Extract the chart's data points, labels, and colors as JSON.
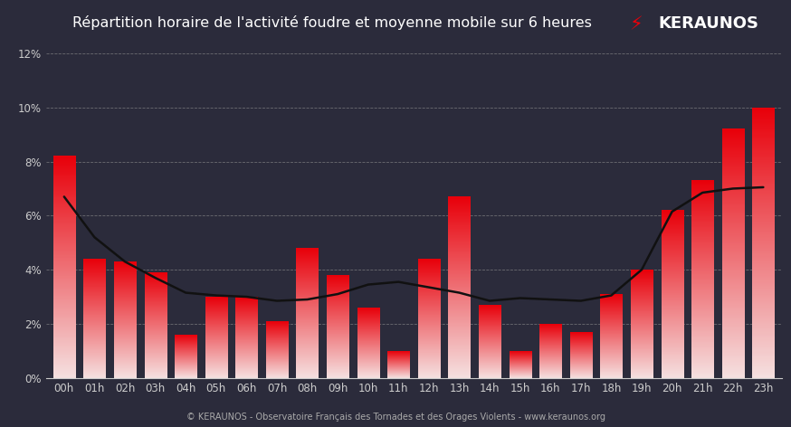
{
  "title": "Répartition horaire de l'activité foudre et moyenne mobile sur 6 heures",
  "categories": [
    "00h",
    "01h",
    "02h",
    "03h",
    "04h",
    "05h",
    "06h",
    "07h",
    "08h",
    "09h",
    "10h",
    "11h",
    "12h",
    "13h",
    "14h",
    "15h",
    "16h",
    "17h",
    "18h",
    "19h",
    "20h",
    "21h",
    "22h",
    "23h"
  ],
  "values": [
    8.2,
    4.4,
    4.3,
    3.9,
    1.6,
    3.0,
    3.0,
    2.1,
    4.8,
    3.8,
    2.6,
    1.0,
    4.4,
    6.7,
    2.7,
    1.0,
    2.0,
    1.7,
    3.1,
    4.0,
    6.2,
    7.3,
    9.2,
    10.0
  ],
  "moving_avg": [
    6.7,
    5.2,
    4.3,
    3.7,
    3.15,
    3.05,
    3.0,
    2.85,
    2.9,
    3.1,
    3.45,
    3.55,
    3.35,
    3.15,
    2.85,
    2.95,
    2.9,
    2.85,
    3.05,
    4.0,
    6.15,
    6.85,
    7.0,
    7.05
  ],
  "ylim": [
    0,
    12
  ],
  "yticks": [
    0,
    2,
    4,
    6,
    8,
    10,
    12
  ],
  "background_color": "#2b2b3b",
  "plot_bg_color": "#2b2b3b",
  "bar_top_color": "#e8000a",
  "bar_bottom_color": "#f5e0e0",
  "line_color": "#111111",
  "grid_color": "#888888",
  "title_color": "#ffffff",
  "tick_color": "#cccccc",
  "footer_text": "© KERAUNOS - Observatoire Français des Tornades et des Orages Violents - www.keraunos.org",
  "title_fontsize": 11.5,
  "tick_fontsize": 8.5,
  "footer_fontsize": 7,
  "logo_text": "KERAUNOS",
  "logo_color": "#ffffff",
  "logo_bolt_color": "#e8000a",
  "bar_width": 0.72
}
